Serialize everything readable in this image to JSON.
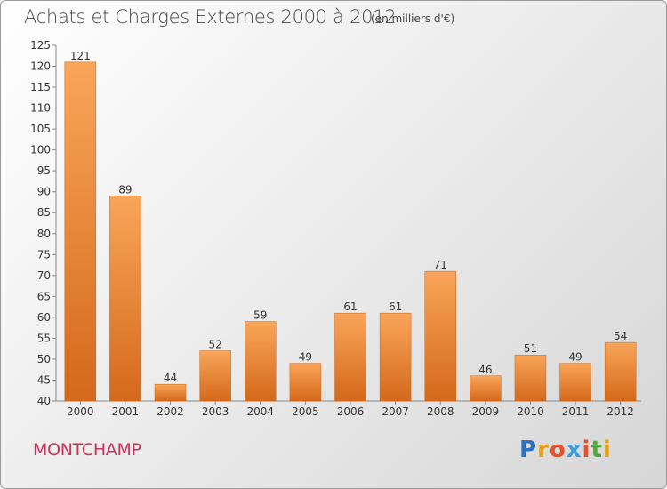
{
  "header": {
    "title": "Achats et Charges Externes 2000 à 2012",
    "unit": "(en milliers d'€)"
  },
  "footer": {
    "place": "MONTCHAMP",
    "logo_letters": [
      "P",
      "r",
      "o",
      "x",
      "i",
      "t",
      "i"
    ],
    "logo_colors": [
      "#2f6fc4",
      "#e8a21a",
      "#e8502a",
      "#3a9fd8",
      "#e8502a",
      "#4fa83a",
      "#e8a21a"
    ]
  },
  "chart_data": {
    "type": "bar",
    "title": "Achats et Charges Externes 2000 à 2012",
    "subtitle": "(en milliers d'€)",
    "xlabel": "",
    "ylabel": "",
    "categories": [
      "2000",
      "2001",
      "2002",
      "2003",
      "2004",
      "2005",
      "2006",
      "2007",
      "2008",
      "2009",
      "2010",
      "2011",
      "2012"
    ],
    "values": [
      121,
      89,
      44,
      52,
      59,
      49,
      61,
      61,
      71,
      46,
      51,
      49,
      54
    ],
    "data_labels": [
      "121",
      "89",
      "44",
      "52",
      "59",
      "49",
      "61",
      "61",
      "71",
      "46",
      "51",
      "49",
      "54"
    ],
    "ylim": [
      40,
      125
    ],
    "yticks": [
      40,
      45,
      50,
      55,
      60,
      65,
      70,
      75,
      80,
      85,
      90,
      95,
      100,
      105,
      110,
      115,
      120,
      125
    ],
    "grid": false,
    "bar_color": "#e67f2e"
  }
}
